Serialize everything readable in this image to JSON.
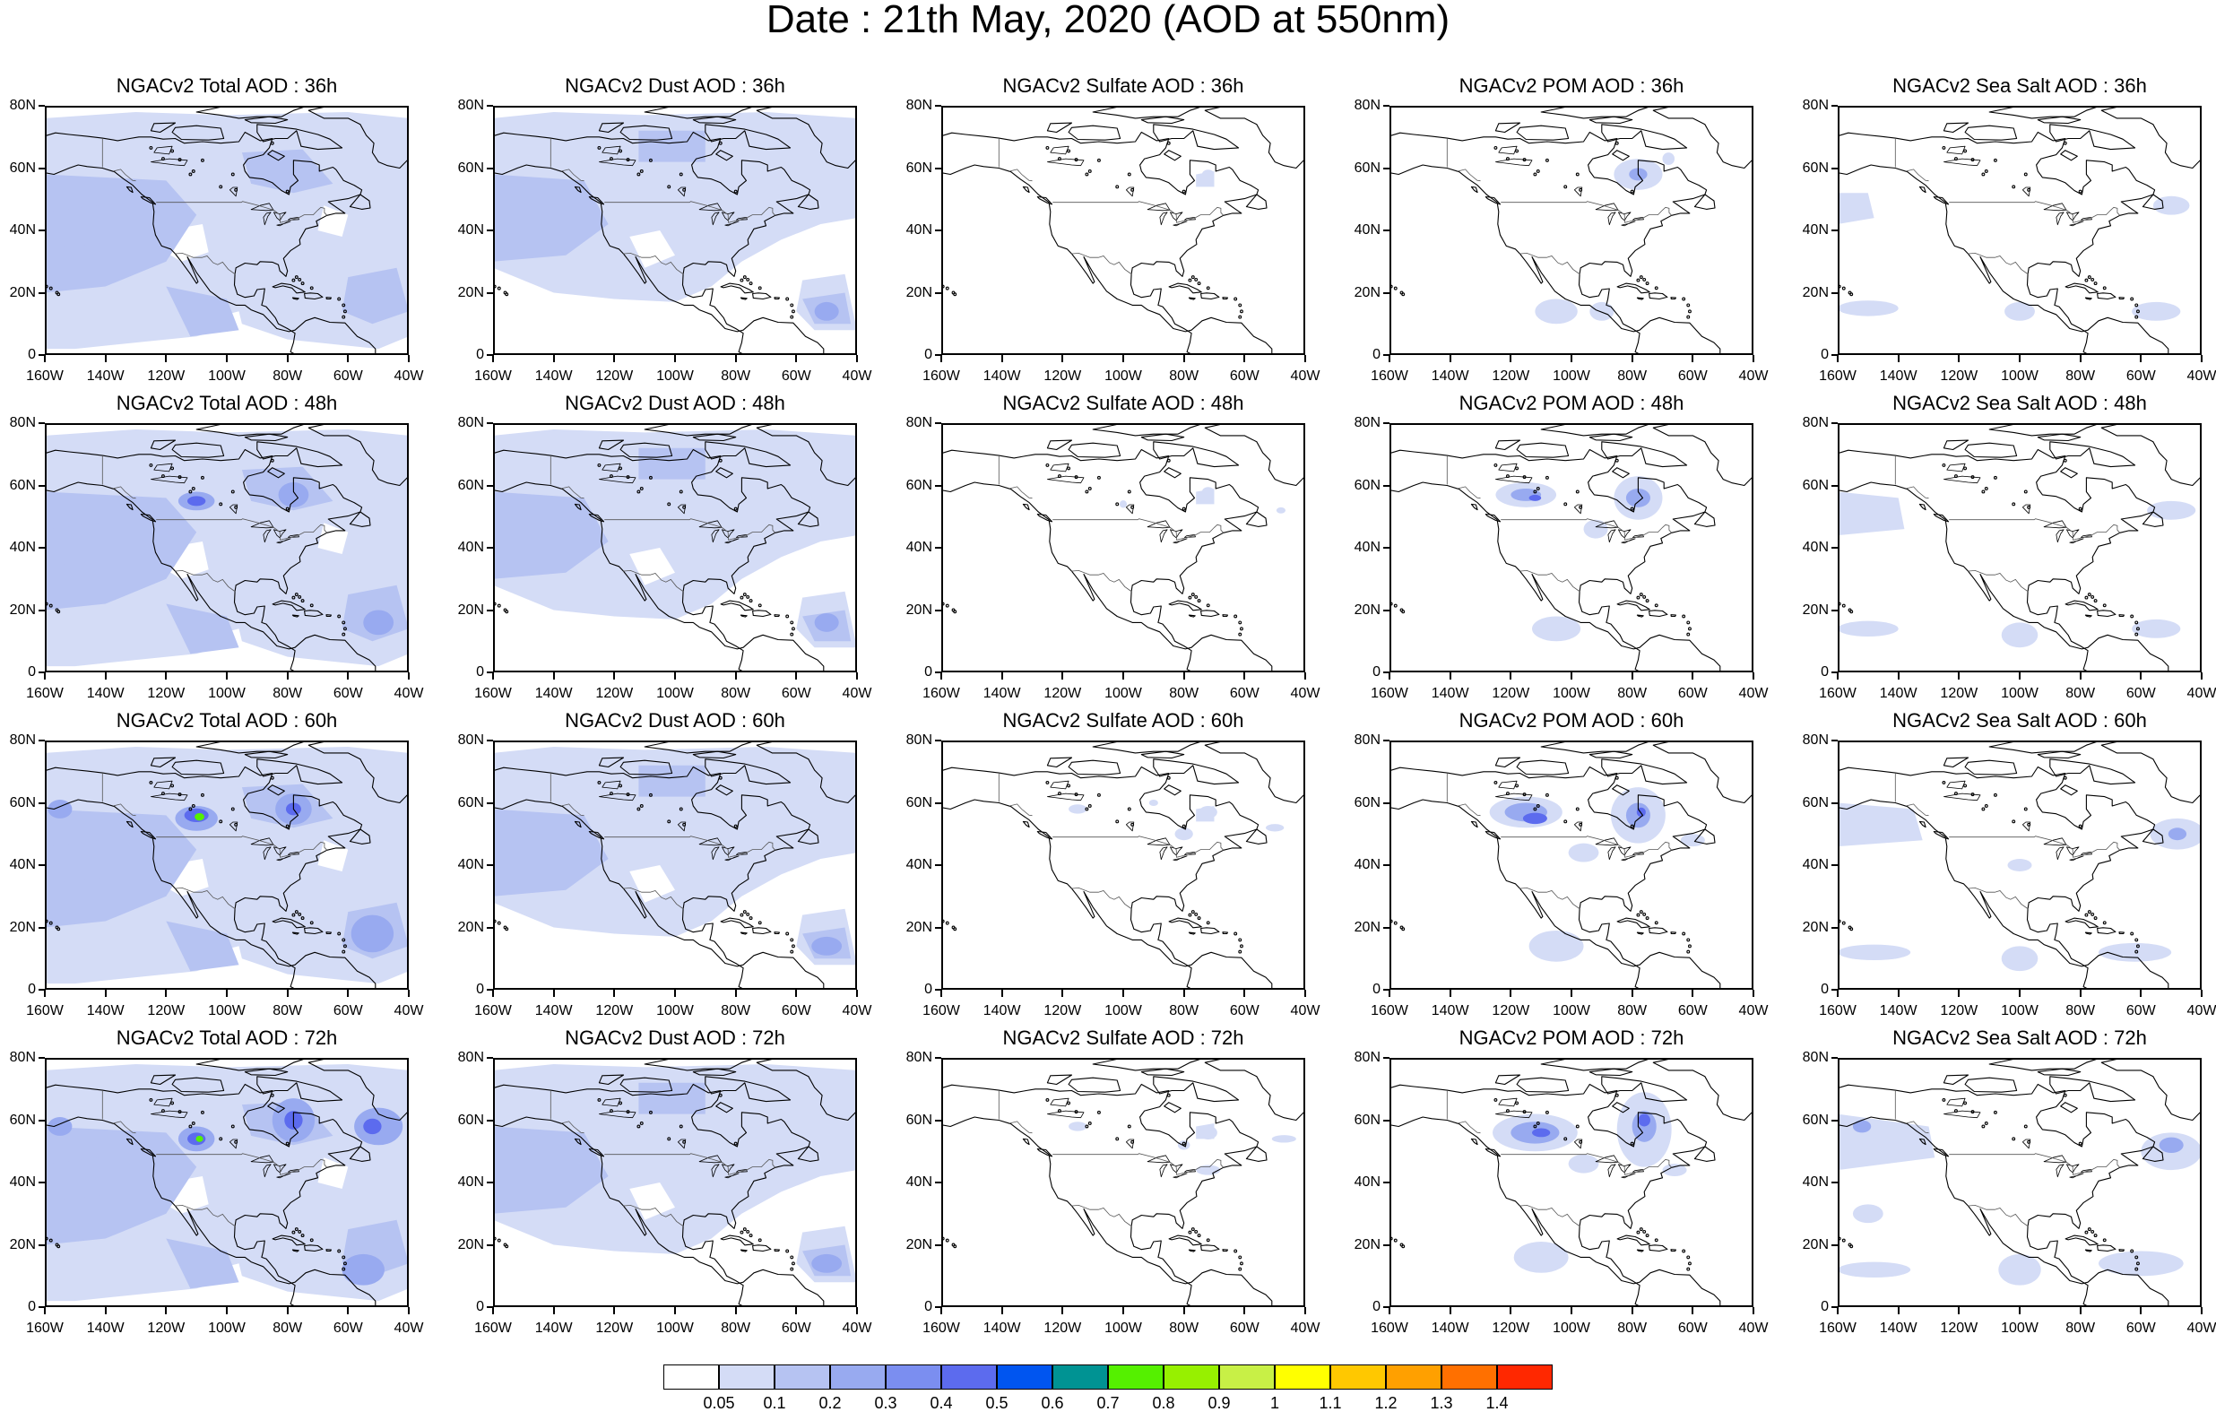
{
  "title": "Date : 21th May, 2020 (AOD at 550nm)",
  "columns": [
    {
      "key": "total",
      "name": "Total AOD"
    },
    {
      "key": "dust",
      "name": "Dust AOD"
    },
    {
      "key": "sulfate",
      "name": "Sulfate AOD"
    },
    {
      "key": "pom",
      "name": "POM AOD"
    },
    {
      "key": "seasalt",
      "name": "Sea Salt AOD"
    }
  ],
  "rows": [
    "36h",
    "48h",
    "60h",
    "72h"
  ],
  "panel_titles": [
    [
      "NGACv2 Total AOD : 36h",
      "NGACv2 Dust AOD : 36h",
      "NGACv2 Sulfate AOD : 36h",
      "NGACv2 POM AOD : 36h",
      "NGACv2 Sea Salt AOD : 36h"
    ],
    [
      "NGACv2 Total AOD : 48h",
      "NGACv2 Dust AOD : 48h",
      "NGACv2 Sulfate AOD : 48h",
      "NGACv2 POM AOD : 48h",
      "NGACv2 Sea Salt AOD : 48h"
    ],
    [
      "NGACv2 Total AOD : 60h",
      "NGACv2 Dust AOD : 60h",
      "NGACv2 Sulfate AOD : 60h",
      "NGACv2 POM AOD : 60h",
      "NGACv2 Sea Salt AOD : 60h"
    ],
    [
      "NGACv2 Total AOD : 72h",
      "NGACv2 Dust AOD : 72h",
      "NGACv2 Sulfate AOD : 72h",
      "NGACv2 POM AOD : 72h",
      "NGACv2 Sea Salt  AOD : 72h"
    ]
  ],
  "map": {
    "lon_range": [
      -160,
      -40
    ],
    "lat_range": [
      0,
      80
    ],
    "lon_ticks": [
      "160W",
      "140W",
      "120W",
      "100W",
      "80W",
      "60W",
      "40W"
    ],
    "lat_ticks": [
      "0",
      "20N",
      "40N",
      "60N",
      "80N"
    ],
    "coastline_color": "#000000",
    "projection": "cylindrical equidistant"
  },
  "colorbar": {
    "colors": [
      "#ffffff",
      "#d4dcf6",
      "#b6c3f2",
      "#98aaf0",
      "#7b8ef0",
      "#5c6bee",
      "#0055f0",
      "#009393",
      "#55f000",
      "#97f000",
      "#c8f046",
      "#ffff00",
      "#ffc800",
      "#ffa000",
      "#ff7000",
      "#ff2800"
    ],
    "labels": [
      "0.05",
      "0.1",
      "0.2",
      "0.3",
      "0.4",
      "0.5",
      "0.6",
      "0.7",
      "0.8",
      "0.9",
      "1",
      "1.1",
      "1.2",
      "1.3",
      "1.4"
    ]
  },
  "field_summary": {
    "total": "light blue AOD over most of the domain, stronger blue plumes over western Canada and Hudson Bay region, green core near 55N 110W at 60h and 72h",
    "dust": "uniform light blue AOD over most of the domain, stronger band over the North Pacific and tropical Atlantic",
    "sulfate": "mostly below 0.05, small light patches over the Great Lakes and east coast",
    "pom": "blue plume over western Canada and Hudson Bay region growing with lead time, patches over Mexico",
    "seasalt": "light blue bands over the North Pacific, North Atlantic and tropical Atlantic"
  }
}
